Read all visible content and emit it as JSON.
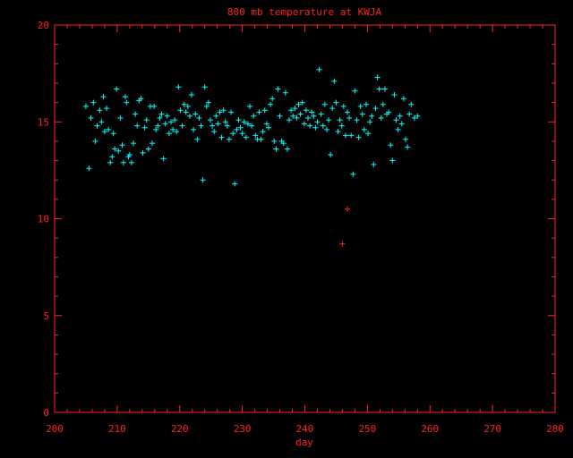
{
  "chart_data": {
    "type": "scatter",
    "title": "800 mb temperature at KWJA",
    "xlabel": "day",
    "ylabel": "",
    "xlim": [
      200,
      280
    ],
    "ylim": [
      0,
      20
    ],
    "xticks": [
      200,
      210,
      220,
      230,
      240,
      250,
      260,
      270,
      280
    ],
    "yticks": [
      0,
      5,
      10,
      15,
      20
    ],
    "grid": false,
    "colors": {
      "background": "#000000",
      "axes": "#ff2020",
      "points": "#00ffff",
      "outliers": "#ff2020"
    },
    "marker": "plus",
    "series": [
      {
        "color": "#00ffff",
        "x": [
          205.0,
          205.5,
          205.8,
          206.2,
          206.5,
          206.8,
          207.2,
          207.5,
          207.8,
          208.0,
          208.3,
          208.6,
          208.9,
          209.2,
          209.4,
          209.6,
          209.9,
          210.2,
          210.5,
          210.8,
          211.0,
          211.3,
          211.5,
          211.8,
          212.0,
          212.3,
          212.6,
          212.9,
          213.2,
          213.5,
          213.8,
          214.1,
          214.4,
          214.7,
          215.0,
          215.3,
          215.6,
          215.9,
          216.2,
          216.5,
          216.8,
          217.1,
          217.4,
          217.7,
          218.0,
          218.3,
          218.6,
          218.9,
          219.2,
          219.5,
          219.8,
          220.1,
          220.4,
          220.7,
          221.0,
          221.3,
          221.6,
          221.9,
          222.2,
          222.5,
          222.8,
          223.1,
          223.4,
          223.7,
          224.0,
          224.3,
          224.6,
          224.9,
          225.2,
          225.5,
          225.8,
          226.1,
          226.4,
          226.7,
          227.0,
          227.3,
          227.6,
          227.9,
          228.2,
          228.5,
          228.8,
          229.1,
          229.4,
          229.7,
          230.0,
          230.3,
          230.6,
          230.9,
          231.2,
          231.5,
          231.8,
          232.1,
          232.4,
          232.7,
          233.0,
          233.3,
          233.6,
          233.9,
          234.2,
          234.5,
          234.8,
          235.1,
          235.4,
          235.7,
          236.0,
          236.3,
          236.6,
          236.9,
          237.2,
          237.5,
          237.8,
          238.1,
          238.4,
          238.7,
          239.0,
          239.3,
          239.6,
          239.9,
          240.2,
          240.5,
          240.8,
          241.1,
          241.4,
          241.7,
          242.0,
          242.3,
          242.6,
          242.9,
          243.2,
          243.5,
          243.8,
          244.1,
          244.4,
          244.7,
          245.0,
          245.3,
          245.6,
          245.9,
          246.2,
          246.5,
          246.8,
          247.1,
          247.4,
          247.7,
          248.0,
          248.3,
          248.6,
          248.9,
          249.2,
          249.5,
          249.8,
          250.1,
          250.4,
          250.7,
          251.0,
          251.3,
          251.6,
          251.9,
          252.2,
          252.5,
          252.8,
          253.1,
          253.4,
          253.7,
          254.0,
          254.3,
          254.6,
          254.9,
          255.2,
          255.5,
          255.8,
          256.1,
          256.4,
          256.7,
          257.0,
          257.5,
          258.0
        ],
        "y": [
          15.8,
          12.6,
          15.2,
          16.0,
          14.0,
          14.8,
          15.6,
          15.0,
          16.3,
          14.5,
          15.7,
          14.6,
          12.9,
          13.2,
          14.4,
          13.6,
          16.7,
          13.5,
          15.2,
          13.8,
          12.9,
          16.3,
          16.0,
          13.2,
          13.3,
          12.9,
          13.9,
          15.4,
          14.8,
          16.1,
          16.2,
          13.4,
          14.7,
          15.1,
          13.6,
          15.8,
          13.9,
          15.8,
          14.6,
          14.8,
          15.2,
          15.4,
          13.1,
          14.9,
          15.3,
          14.4,
          15.0,
          14.6,
          15.1,
          14.5,
          16.8,
          15.6,
          14.8,
          15.9,
          15.5,
          15.8,
          15.3,
          16.4,
          14.6,
          15.4,
          14.1,
          15.2,
          14.8,
          12.0,
          16.8,
          15.8,
          16.0,
          15.1,
          14.8,
          14.5,
          15.3,
          14.9,
          15.5,
          14.2,
          15.6,
          15.0,
          14.8,
          14.1,
          15.5,
          14.4,
          11.8,
          14.6,
          15.1,
          14.7,
          14.4,
          15.0,
          14.2,
          14.9,
          15.8,
          14.8,
          15.3,
          14.3,
          14.1,
          15.5,
          14.1,
          14.5,
          15.6,
          14.9,
          14.7,
          15.9,
          16.2,
          14.0,
          13.6,
          16.7,
          15.3,
          14.0,
          13.9,
          16.5,
          13.6,
          15.1,
          15.6,
          15.3,
          15.7,
          15.2,
          15.9,
          15.4,
          16.0,
          14.9,
          15.6,
          15.2,
          14.8,
          15.5,
          15.3,
          14.7,
          15.0,
          17.7,
          15.4,
          14.8,
          15.9,
          14.6,
          15.1,
          13.3,
          15.7,
          17.1,
          16.0,
          14.5,
          15.1,
          14.8,
          15.8,
          14.3,
          15.5,
          15.2,
          14.3,
          12.3,
          16.6,
          15.1,
          14.2,
          15.8,
          15.4,
          14.6,
          15.9,
          14.4,
          15.0,
          15.3,
          12.8,
          15.7,
          17.3,
          16.7,
          15.2,
          15.9,
          16.7,
          15.4,
          15.5,
          13.8,
          13.0,
          16.4,
          15.1,
          14.6,
          15.3,
          14.9,
          16.2,
          14.1,
          13.7,
          15.4,
          15.9,
          15.2,
          15.3
        ]
      },
      {
        "color": "#ff2020",
        "x": [
          246.0,
          246.8
        ],
        "y": [
          8.7,
          10.5
        ]
      }
    ]
  }
}
